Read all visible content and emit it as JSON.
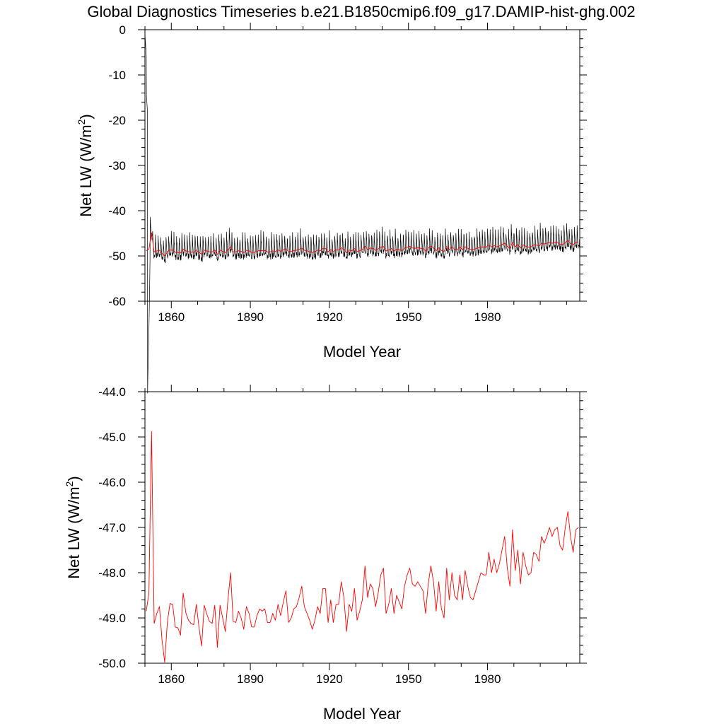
{
  "title": "Global Diagnostics Timeseries b.e21.B1850cmip6.f09_g17.DAMIP-hist-ghg.002",
  "colors": {
    "monthly": "#000000",
    "annual": "#ff0000",
    "background": "#ffffff"
  },
  "chart_data": [
    {
      "type": "line",
      "panel": "top",
      "xlabel": "Model Year",
      "ylabel": "Net LW (W/m",
      "ylabel_sup": "2",
      "ylabel_close": ")",
      "xlim": [
        1850,
        2015
      ],
      "ylim": [
        -60,
        0
      ],
      "xticks": [
        1860,
        1890,
        1920,
        1950,
        1980
      ],
      "xtick_labels": [
        "1860",
        "1890",
        "1920",
        "1950",
        "1980"
      ],
      "yticks": [
        0,
        -10,
        -20,
        -30,
        -40,
        -50,
        -60
      ],
      "ytick_labels": [
        "0",
        "-10",
        "-20",
        "-30",
        "-40",
        "-50",
        "-60"
      ],
      "series": [
        {
          "name": "monthly",
          "color": "#000000",
          "note": "monthly values oscillating ~ -51 to -45, initial spin-up from ~0"
        },
        {
          "name": "annual",
          "color": "#ff0000",
          "note": "annual mean, same as bottom panel"
        }
      ]
    },
    {
      "type": "line",
      "panel": "bottom",
      "xlabel": "Model Year",
      "ylabel": "Net LW (W/m",
      "ylabel_sup": "2",
      "ylabel_close": ")",
      "xlim": [
        1850,
        2015
      ],
      "ylim": [
        -50.0,
        -44.0
      ],
      "xticks": [
        1860,
        1890,
        1920,
        1950,
        1980
      ],
      "xtick_labels": [
        "1860",
        "1890",
        "1920",
        "1950",
        "1980"
      ],
      "yticks": [
        -44.0,
        -45.0,
        -46.0,
        -47.0,
        -48.0,
        -49.0,
        -50.0
      ],
      "ytick_labels": [
        "-44.0",
        "-45.0",
        "-46.0",
        "-47.0",
        "-48.0",
        "-49.0",
        "-50.0"
      ],
      "series": [
        {
          "name": "annual",
          "color": "#ff0000",
          "x_start": 1850,
          "values": [
            -48.85,
            -48.45,
            -44.88,
            -49.12,
            -48.9,
            -48.75,
            -49.5,
            -49.98,
            -49.1,
            -48.68,
            -48.7,
            -49.2,
            -49.22,
            -49.38,
            -48.45,
            -48.88,
            -49.05,
            -49.12,
            -49.15,
            -48.7,
            -49.2,
            -49.62,
            -48.72,
            -48.92,
            -49.08,
            -49.12,
            -48.72,
            -49.65,
            -48.72,
            -49.0,
            -49.3,
            -48.6,
            -48.0,
            -49.08,
            -49.1,
            -48.85,
            -49.0,
            -49.25,
            -48.75,
            -48.9,
            -49.2,
            -49.2,
            -48.95,
            -48.8,
            -48.85,
            -48.8,
            -49.1,
            -49.1,
            -48.9,
            -49.05,
            -48.7,
            -48.95,
            -48.65,
            -48.4,
            -49.1,
            -49.0,
            -48.8,
            -48.75,
            -48.55,
            -48.3,
            -48.75,
            -48.9,
            -49.05,
            -49.25,
            -49.05,
            -48.75,
            -48.9,
            -48.35,
            -48.35,
            -49.1,
            -48.6,
            -49.1,
            -48.7,
            -48.7,
            -48.2,
            -48.55,
            -49.3,
            -48.7,
            -48.85,
            -48.35,
            -49.05,
            -48.85,
            -48.6,
            -47.85,
            -48.55,
            -48.25,
            -48.35,
            -48.75,
            -48.45,
            -48.05,
            -47.9,
            -48.9,
            -48.7,
            -48.35,
            -48.9,
            -48.5,
            -48.65,
            -48.8,
            -48.3,
            -48.05,
            -47.9,
            -48.25,
            -48.3,
            -48.2,
            -48.3,
            -48.4,
            -48.9,
            -48.25,
            -47.85,
            -48.2,
            -48.85,
            -48.2,
            -48.8,
            -49.0,
            -47.9,
            -48.6,
            -48.0,
            -48.5,
            -48.6,
            -48.05,
            -48.6,
            -47.95,
            -48.3,
            -48.55,
            -48.6,
            -48.4,
            -48.2,
            -48.0,
            -48.05,
            -48.05,
            -47.55,
            -48.0,
            -47.7,
            -48.0,
            -47.8,
            -47.5,
            -47.2,
            -47.9,
            -48.3,
            -47.05,
            -47.95,
            -47.5,
            -48.25,
            -47.55,
            -47.85,
            -48.05,
            -48.0,
            -47.55,
            -47.6,
            -47.75,
            -47.2,
            -47.35,
            -47.2,
            -47.0,
            -47.2,
            -47.05,
            -47.0,
            -47.4,
            -47.5,
            -47.0,
            -46.65,
            -47.2,
            -47.55,
            -47.05,
            -47.0
          ]
        }
      ]
    }
  ]
}
